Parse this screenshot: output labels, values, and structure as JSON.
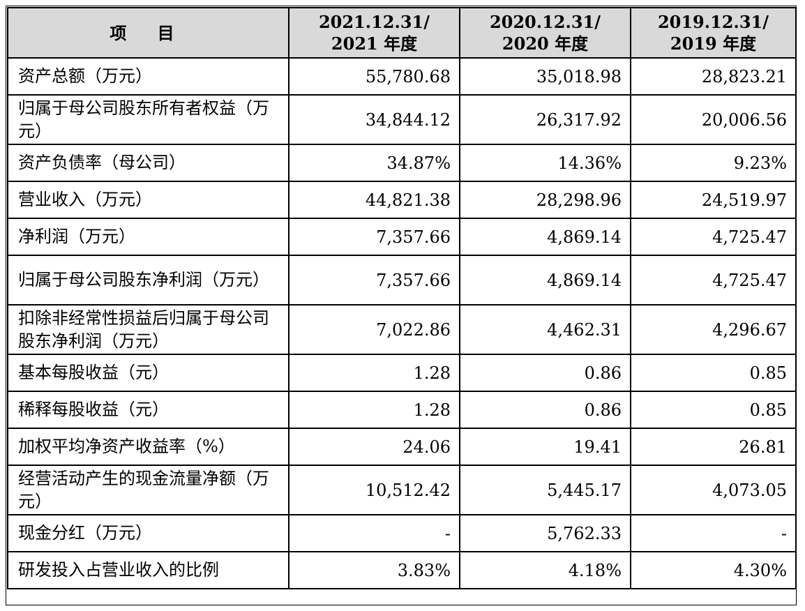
{
  "header": {
    "item": "项 目",
    "col1_line1": "2021.12.31/",
    "col1_line2": "2021 年度",
    "col2_line1": "2020.12.31/",
    "col2_line2": "2020 年度",
    "col3_line1": "2019.12.31/",
    "col3_line2": "2019 年度"
  },
  "rows": [
    {
      "label": "资产总额（万元）",
      "v2021": "55,780.68",
      "v2020": "35,018.98",
      "v2019": "28,823.21"
    },
    {
      "label": "归属于母公司股东所有者权益（万元）",
      "v2021": "34,844.12",
      "v2020": "26,317.92",
      "v2019": "20,006.56"
    },
    {
      "label": "资产负债率（母公司）",
      "v2021": "34.87%",
      "v2020": "14.36%",
      "v2019": "9.23%"
    },
    {
      "label": "营业收入（万元）",
      "v2021": "44,821.38",
      "v2020": "28,298.96",
      "v2019": "24,519.97"
    },
    {
      "label": "净利润（万元）",
      "v2021": "7,357.66",
      "v2020": "4,869.14",
      "v2019": "4,725.47"
    },
    {
      "label": "归属于母公司股东净利润（万元）",
      "v2021": "7,357.66",
      "v2020": "4,869.14",
      "v2019": "4,725.47"
    },
    {
      "label": "扣除非经常性损益后归属于母公司股东净利润（万元）",
      "v2021": "7,022.86",
      "v2020": "4,462.31",
      "v2019": "4,296.67"
    },
    {
      "label": "基本每股收益（元）",
      "v2021": "1.28",
      "v2020": "0.86",
      "v2019": "0.85"
    },
    {
      "label": "稀释每股收益（元）",
      "v2021": "1.28",
      "v2020": "0.86",
      "v2019": "0.85"
    },
    {
      "label": "加权平均净资产收益率（%）",
      "v2021": "24.06",
      "v2020": "19.41",
      "v2019": "26.81"
    },
    {
      "label": "经营活动产生的现金流量净额（万元）",
      "v2021": "10,512.42",
      "v2020": "5,445.17",
      "v2019": "4,073.05"
    },
    {
      "label": "现金分红（万元）",
      "v2021": "-",
      "v2020": "5,762.33",
      "v2019": "-"
    },
    {
      "label": "研发投入占营业收入的比例",
      "v2021": "3.83%",
      "v2020": "4.18%",
      "v2019": "4.30%"
    }
  ],
  "colors": {
    "header_bg": "#d9d9d9",
    "border": "#000000"
  }
}
